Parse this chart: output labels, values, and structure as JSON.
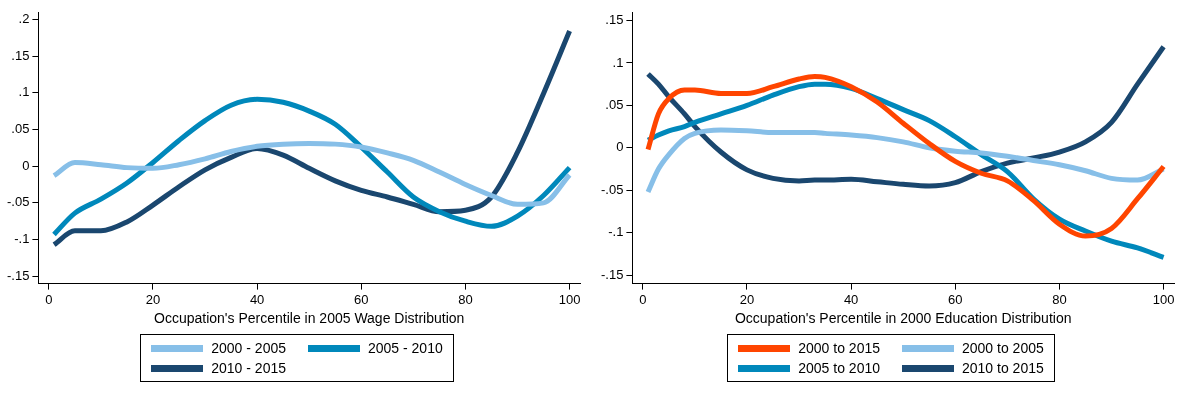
{
  "chart_data": [
    {
      "type": "line",
      "xlabel": "Occupation's Percentile in 2005 Wage Distribution",
      "x": [
        1,
        5,
        10,
        15,
        20,
        25,
        30,
        35,
        40,
        45,
        50,
        55,
        60,
        65,
        70,
        75,
        80,
        85,
        90,
        95,
        100
      ],
      "xlim": [
        -2,
        102
      ],
      "xticks": [
        0,
        20,
        40,
        60,
        80,
        100
      ],
      "ylim": [
        -0.16,
        0.21
      ],
      "yticks": [
        {
          "value": -0.15,
          "label": "-.15"
        },
        {
          "value": -0.1,
          "label": "-.1"
        },
        {
          "value": -0.05,
          "label": "-.05"
        },
        {
          "value": 0,
          "label": "0"
        },
        {
          "value": 0.05,
          "label": ".05"
        },
        {
          "value": 0.1,
          "label": ".1"
        },
        {
          "value": 0.15,
          "label": ".15"
        },
        {
          "value": 0.2,
          "label": ".2"
        }
      ],
      "grid": false,
      "legend": "bottom",
      "marker": "none",
      "line_style": "solid",
      "series": [
        {
          "name": "2000 - 2005",
          "color": "#87bfe8",
          "values": [
            -0.013,
            0.005,
            0.002,
            -0.002,
            -0.003,
            0.002,
            0.01,
            0.02,
            0.027,
            0.03,
            0.031,
            0.03,
            0.026,
            0.018,
            0.008,
            -0.008,
            -0.025,
            -0.04,
            -0.052,
            -0.05,
            -0.012
          ]
        },
        {
          "name": "2005 - 2010",
          "color": "#0088bb",
          "values": [
            -0.093,
            -0.064,
            -0.045,
            -0.023,
            0.005,
            0.035,
            0.062,
            0.083,
            0.091,
            0.087,
            0.075,
            0.057,
            0.026,
            -0.008,
            -0.042,
            -0.062,
            -0.075,
            -0.082,
            -0.068,
            -0.04,
            -0.002
          ]
        },
        {
          "name": "2010 - 2015",
          "color": "#1a476f",
          "values": [
            -0.107,
            -0.088,
            -0.088,
            -0.076,
            -0.053,
            -0.028,
            -0.005,
            0.012,
            0.024,
            0.015,
            -0.003,
            -0.02,
            -0.033,
            -0.042,
            -0.052,
            -0.062,
            -0.06,
            -0.042,
            0.019,
            0.099,
            0.184
          ]
        }
      ]
    },
    {
      "type": "line",
      "xlabel": "Occupation's Percentile in 2000 Education Distribution",
      "x": [
        1,
        3,
        5,
        8,
        10,
        15,
        20,
        25,
        30,
        33,
        35,
        40,
        45,
        50,
        55,
        60,
        65,
        70,
        75,
        80,
        85,
        90,
        95,
        100
      ],
      "xlim": [
        -2,
        102
      ],
      "xticks": [
        0,
        20,
        40,
        60,
        80,
        100
      ],
      "ylim": [
        -0.16,
        0.16
      ],
      "yticks": [
        {
          "value": -0.15,
          "label": "-.15"
        },
        {
          "value": -0.1,
          "label": "-.1"
        },
        {
          "value": -0.05,
          "label": "-.05"
        },
        {
          "value": 0,
          "label": "0"
        },
        {
          "value": 0.05,
          "label": ".05"
        },
        {
          "value": 0.1,
          "label": ".1"
        },
        {
          "value": 0.15,
          "label": ".15"
        }
      ],
      "grid": false,
      "legend": "bottom",
      "marker": "none",
      "line_style": "solid",
      "series": [
        {
          "name": "2000 to 2015",
          "color": "#ff4500",
          "values": [
            -0.002,
            0.04,
            0.058,
            0.068,
            0.068,
            0.064,
            0.064,
            0.072,
            0.081,
            0.084,
            0.083,
            0.072,
            0.054,
            0.029,
            0.005,
            -0.016,
            -0.03,
            -0.039,
            -0.062,
            -0.09,
            -0.104,
            -0.095,
            -0.06,
            -0.022
          ]
        },
        {
          "name": "2000 to 2005",
          "color": "#87bfe8",
          "values": [
            -0.052,
            -0.025,
            -0.008,
            0.011,
            0.017,
            0.021,
            0.02,
            0.018,
            0.018,
            0.018,
            0.017,
            0.015,
            0.012,
            0.007,
            0.0,
            -0.004,
            -0.006,
            -0.01,
            -0.015,
            -0.02,
            -0.027,
            -0.036,
            -0.038,
            -0.025
          ]
        },
        {
          "name": "2005 to 2010",
          "color": "#0088bb",
          "values": [
            0.009,
            0.015,
            0.02,
            0.025,
            0.03,
            0.04,
            0.05,
            0.062,
            0.072,
            0.075,
            0.075,
            0.07,
            0.058,
            0.045,
            0.032,
            0.013,
            -0.008,
            -0.028,
            -0.06,
            -0.084,
            -0.098,
            -0.11,
            -0.118,
            -0.129
          ]
        },
        {
          "name": "2010 to 2015",
          "color": "#1a476f",
          "values": [
            0.087,
            0.075,
            0.06,
            0.04,
            0.025,
            -0.005,
            -0.026,
            -0.036,
            -0.039,
            -0.038,
            -0.038,
            -0.037,
            -0.04,
            -0.043,
            -0.045,
            -0.041,
            -0.028,
            -0.018,
            -0.012,
            -0.005,
            0.007,
            0.03,
            0.075,
            0.119
          ]
        }
      ]
    }
  ]
}
